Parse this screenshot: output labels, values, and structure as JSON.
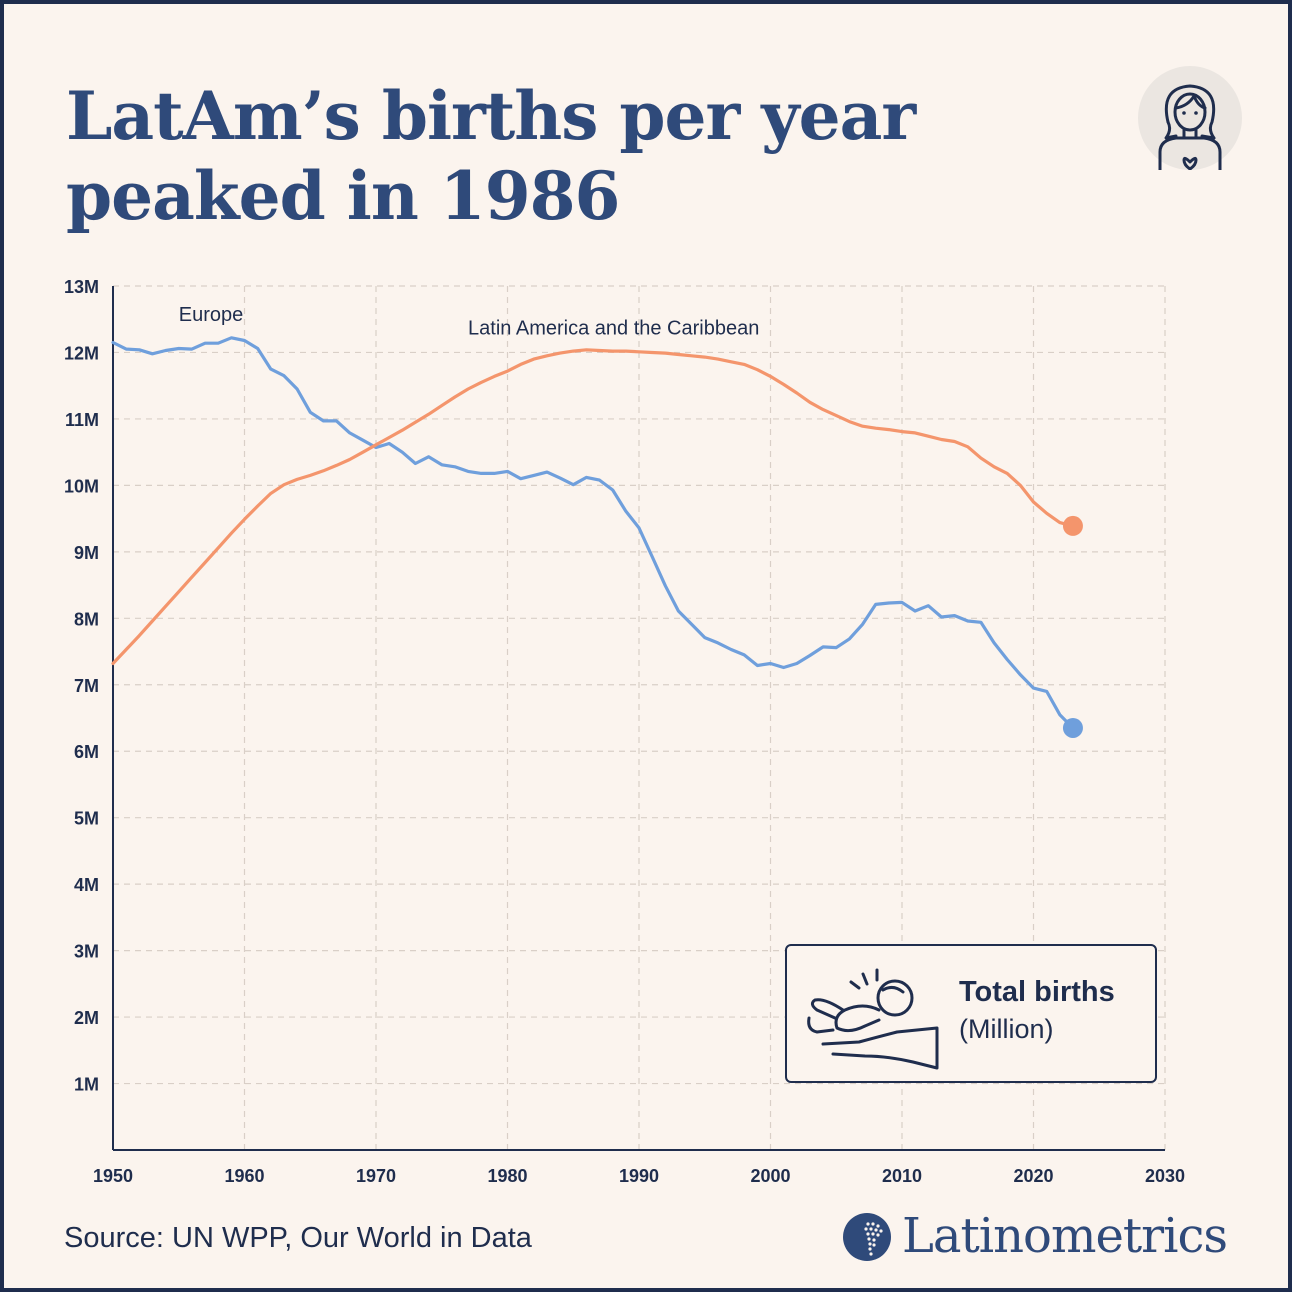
{
  "title": "LatAm’s births per year peaked in 1986",
  "legend_box": {
    "title": "Total births",
    "subtitle": "(Million)"
  },
  "source": "Source: UN WPP, Our World in Data",
  "brand": "Latinometrics",
  "icons": {
    "header": "woman-avatar-icon",
    "legend": "baby-in-hand-icon",
    "brand": "latin-america-map-icon"
  },
  "colors": {
    "latam": "#f4956c",
    "europe": "#6f9fdc",
    "text": "#1f2d4d",
    "title": "#2f4a7a",
    "background": "#fbf4ee"
  },
  "chart_data": {
    "type": "line",
    "xlim": [
      1950,
      2030
    ],
    "ylim": [
      0,
      13000000
    ],
    "x_ticks": [
      1950,
      1960,
      1970,
      1980,
      1990,
      2000,
      2010,
      2020,
      2030
    ],
    "y_ticks": [
      "1M",
      "2M",
      "3M",
      "4M",
      "5M",
      "6M",
      "7M",
      "8M",
      "9M",
      "10M",
      "11M",
      "12M",
      "13M"
    ],
    "y_tick_values": [
      1000000,
      2000000,
      3000000,
      4000000,
      5000000,
      6000000,
      7000000,
      8000000,
      9000000,
      10000000,
      11000000,
      12000000,
      13000000
    ],
    "grid": true,
    "series": [
      {
        "name": "Europe",
        "color": "#6f9fdc",
        "x": [
          1950,
          1951,
          1952,
          1953,
          1954,
          1955,
          1956,
          1957,
          1958,
          1959,
          1960,
          1961,
          1962,
          1963,
          1964,
          1965,
          1966,
          1967,
          1968,
          1969,
          1970,
          1971,
          1972,
          1973,
          1974,
          1975,
          1976,
          1977,
          1978,
          1979,
          1980,
          1981,
          1982,
          1983,
          1984,
          1985,
          1986,
          1987,
          1988,
          1989,
          1990,
          1991,
          1992,
          1993,
          1994,
          1995,
          1996,
          1997,
          1998,
          1999,
          2000,
          2001,
          2002,
          2003,
          2004,
          2005,
          2006,
          2007,
          2008,
          2009,
          2010,
          2011,
          2012,
          2013,
          2014,
          2015,
          2016,
          2017,
          2018,
          2019,
          2020,
          2021,
          2022,
          2023
        ],
        "values": [
          12150000,
          12050000,
          12040000,
          11980000,
          12030000,
          12060000,
          12050000,
          12140000,
          12140000,
          12220000,
          12180000,
          12060000,
          11750000,
          11650000,
          11450000,
          11100000,
          10970000,
          10970000,
          10790000,
          10680000,
          10570000,
          10630000,
          10500000,
          10330000,
          10430000,
          10310000,
          10280000,
          10210000,
          10180000,
          10180000,
          10210000,
          10100000,
          10150000,
          10200000,
          10110000,
          10010000,
          10120000,
          10080000,
          9930000,
          9610000,
          9360000,
          8930000,
          8490000,
          8110000,
          7910000,
          7710000,
          7630000,
          7530000,
          7450000,
          7290000,
          7320000,
          7260000,
          7320000,
          7440000,
          7570000,
          7560000,
          7690000,
          7910000,
          8210000,
          8230000,
          8240000,
          8110000,
          8190000,
          8020000,
          8040000,
          7960000,
          7940000,
          7630000,
          7380000,
          7150000,
          6950000,
          6900000,
          6550000,
          6350000
        ]
      },
      {
        "name": "Latin America and the Caribbean",
        "color": "#f4956c",
        "x": [
          1950,
          1951,
          1952,
          1953,
          1954,
          1955,
          1956,
          1957,
          1958,
          1959,
          1960,
          1961,
          1962,
          1963,
          1964,
          1965,
          1966,
          1967,
          1968,
          1969,
          1970,
          1971,
          1972,
          1973,
          1974,
          1975,
          1976,
          1977,
          1978,
          1979,
          1980,
          1981,
          1982,
          1983,
          1984,
          1985,
          1986,
          1987,
          1988,
          1989,
          1990,
          1991,
          1992,
          1993,
          1994,
          1995,
          1996,
          1997,
          1998,
          1999,
          2000,
          2001,
          2002,
          2003,
          2004,
          2005,
          2006,
          2007,
          2008,
          2009,
          2010,
          2011,
          2012,
          2013,
          2014,
          2015,
          2016,
          2017,
          2018,
          2019,
          2020,
          2021,
          2022,
          2023
        ],
        "values": [
          7320000,
          7530000,
          7740000,
          7960000,
          8180000,
          8400000,
          8620000,
          8840000,
          9060000,
          9280000,
          9490000,
          9690000,
          9880000,
          10010000,
          10090000,
          10150000,
          10220000,
          10300000,
          10390000,
          10500000,
          10610000,
          10720000,
          10830000,
          10950000,
          11070000,
          11200000,
          11330000,
          11450000,
          11550000,
          11640000,
          11720000,
          11820000,
          11900000,
          11950000,
          11990000,
          12020000,
          12040000,
          12030000,
          12020000,
          12020000,
          12010000,
          12000000,
          11990000,
          11970000,
          11950000,
          11930000,
          11900000,
          11860000,
          11820000,
          11740000,
          11640000,
          11520000,
          11390000,
          11250000,
          11140000,
          11050000,
          10960000,
          10890000,
          10860000,
          10840000,
          10810000,
          10790000,
          10740000,
          10690000,
          10660000,
          10580000,
          10410000,
          10280000,
          10180000,
          10000000,
          9750000,
          9580000,
          9440000,
          9390000
        ]
      }
    ],
    "annotations": [
      {
        "text": "Europe",
        "x": 1955,
        "y": 12470000
      },
      {
        "text": "Latin America and the Caribbean",
        "x": 1977,
        "y": 12270000
      }
    ]
  }
}
